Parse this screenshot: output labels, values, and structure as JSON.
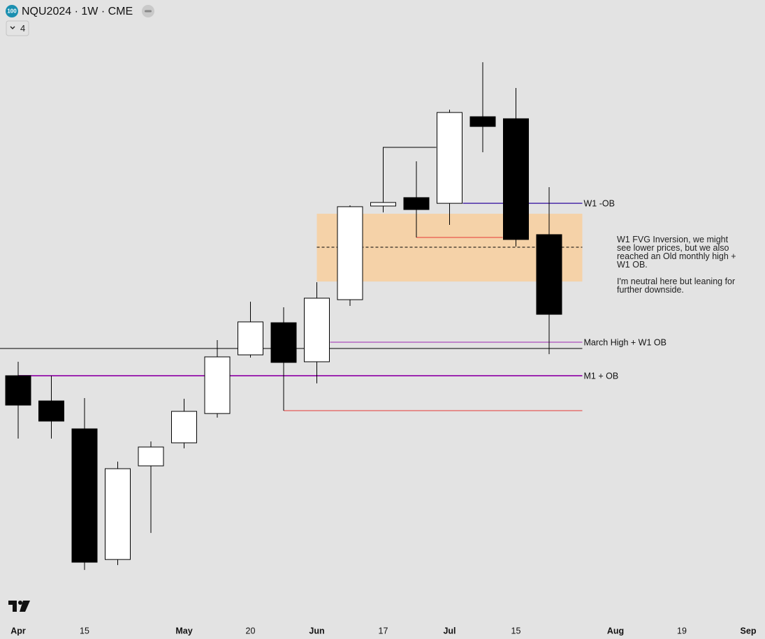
{
  "header": {
    "badge": "100",
    "title": "NQU2024 · 1W · CME",
    "indicator_count": "4"
  },
  "chart_data": {
    "type": "candlestick",
    "categories": [
      "Apr",
      null,
      "15",
      null,
      null,
      "May",
      null,
      "20",
      null,
      "Jun",
      null,
      "17",
      null,
      "Jul",
      null,
      "15",
      null,
      null,
      "Aug",
      null,
      "19",
      null,
      "Sep"
    ],
    "open": [
      18588,
      18402,
      18196,
      17232,
      17923,
      18093,
      18309,
      18742,
      18979,
      18691,
      19149,
      19840,
      19902,
      19860,
      20499,
      20484,
      19629,
      null,
      null,
      null,
      null,
      null,
      null
    ],
    "high": [
      18691,
      18588,
      18423,
      17954,
      18103,
      18418,
      18851,
      19134,
      19093,
      19278,
      19845,
      19881,
      20170,
      20551,
      20901,
      20711,
      19979,
      null,
      null,
      null,
      null,
      null,
      null
    ],
    "low": [
      18124,
      18124,
      17155,
      17191,
      17428,
      18052,
      18279,
      18722,
      18330,
      18531,
      19103,
      19793,
      19608,
      19701,
      20237,
      19541,
      18747,
      null,
      null,
      null,
      null,
      null,
      null
    ],
    "close": [
      18371,
      18253,
      17212,
      17902,
      18062,
      18325,
      18727,
      18985,
      18686,
      19160,
      19835,
      19866,
      19814,
      20530,
      20427,
      19593,
      19041,
      null,
      null,
      null,
      null,
      null,
      null
    ],
    "up_color": "#ffffff",
    "down_color": "#000000",
    "ylim": [
      16800,
      21360
    ],
    "zone": {
      "from": 9,
      "to": 17,
      "top": 19783,
      "bottom": 19283,
      "mid": 19536,
      "color": "#f5d2a8"
    },
    "levels": [
      {
        "label": "W1 -OB",
        "value": 19860,
        "from": 13.4,
        "to": 17,
        "color": "#4b2ca8",
        "width": 1.5
      },
      {
        "value": 19608,
        "from": 12,
        "to": 14.6,
        "color": "#e53935",
        "width": 1
      },
      {
        "label": "March High + W1 OB",
        "value": 18835,
        "from": 9.4,
        "to": 17,
        "color": "#9c27b0",
        "width": 1
      },
      {
        "value": 18789,
        "from": -0.55,
        "to": 17,
        "color": "#000000",
        "width": 1
      },
      {
        "label": "M1 + OB",
        "value": 18588,
        "from": 0,
        "to": 17,
        "color": "#9c27b0",
        "width": 2
      },
      {
        "value": 18330,
        "from": 8,
        "to": 17,
        "color": "#e53935",
        "width": 1
      }
    ],
    "step_line": {
      "x": [
        11,
        11,
        12.6
      ],
      "y": [
        19866,
        20273,
        20273
      ],
      "color": "#000000"
    },
    "annotation": [
      "W1 FVG Inversion, we might see lower prices, but we also reached an Old monthly high + W1 OB.",
      "I'm neutral here but leaning for further downside."
    ]
  }
}
